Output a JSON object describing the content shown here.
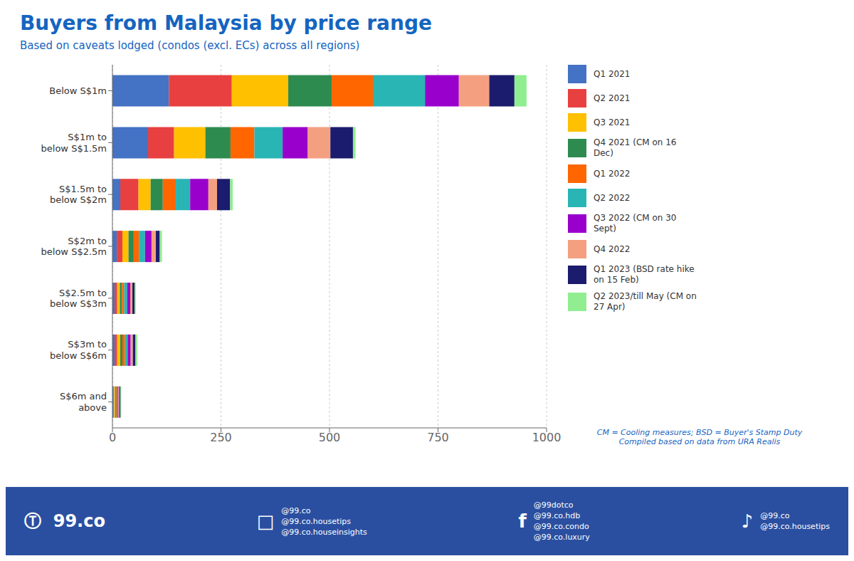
{
  "chart_data": {
    "type": "bar",
    "orientation": "horizontal",
    "stacked": true,
    "title": "Buyers from Malaysia by price range",
    "subtitle": "Based on caveats lodged (condos (excl. ECs) across all regions)",
    "categories": [
      "Below S$1m",
      "S$1m to\nbelow S$1.5m",
      "S$1.5m to\nbelow S$2m",
      "S$2m to\nbelow S$2.5m",
      "S$2.5m to\nbelow S$3m",
      "S$3m to\nbelow S$6m",
      "S$6m and\nabove"
    ],
    "series": [
      {
        "name": "Q1 2021",
        "color": "#4472C4",
        "values": [
          130,
          82,
          18,
          10,
          5,
          5,
          2
        ]
      },
      {
        "name": "Q2 2021",
        "color": "#E84040",
        "values": [
          145,
          60,
          42,
          13,
          6,
          6,
          2
        ]
      },
      {
        "name": "Q3 2021",
        "color": "#FFC000",
        "values": [
          130,
          72,
          28,
          14,
          6,
          7,
          2
        ]
      },
      {
        "name": "Q4 2021 (CM on 16\nDec)",
        "color": "#2E8B50",
        "values": [
          100,
          58,
          28,
          12,
          5,
          5,
          2
        ]
      },
      {
        "name": "Q1 2022",
        "color": "#FF6600",
        "values": [
          95,
          55,
          30,
          12,
          5,
          6,
          2
        ]
      },
      {
        "name": "Q2 2022",
        "color": "#2AB5B5",
        "values": [
          120,
          65,
          33,
          14,
          7,
          6,
          2
        ]
      },
      {
        "name": "Q3 2022 (CM on 30\nSept)",
        "color": "#9900CC",
        "values": [
          78,
          58,
          42,
          15,
          7,
          7,
          2
        ]
      },
      {
        "name": "Q4 2022",
        "color": "#F4A080",
        "values": [
          70,
          52,
          20,
          10,
          5,
          5,
          2
        ]
      },
      {
        "name": "Q1 2023 (BSD rate hike\non 15 Feb)",
        "color": "#1C1C6E",
        "values": [
          58,
          52,
          30,
          9,
          5,
          6,
          2
        ]
      },
      {
        "name": "Q2 2023/till May (CM on\n27 Apr)",
        "color": "#90EE90",
        "values": [
          28,
          6,
          6,
          5,
          3,
          4,
          2
        ]
      }
    ],
    "xlim": [
      0,
      1000
    ],
    "xticks": [
      0,
      250,
      500,
      750,
      1000
    ],
    "grid": true,
    "legend": "right",
    "annotations": [
      "Ⓣ  99.co",
      "□",
      "@99.co\n@99.co.housetips\n@99.co.houseinsights",
      "f",
      "@99dotco\n@99.co.hdb\n@99.co.condo\n@99.co.luxury",
      "♪",
      "@99.co\n@99.co.housetips",
      "CM = Cooling measures; BSD = Buyer's Stamp Duty\nCompiled based on data from URA Realis"
    ]
  }
}
